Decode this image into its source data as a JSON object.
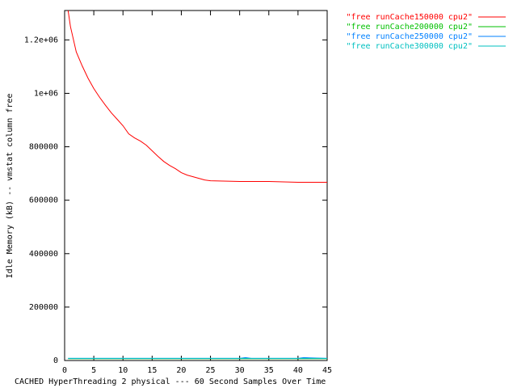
{
  "chart_data": {
    "type": "line",
    "xlabel": "CACHED HyperThreading 2 physical --- 60 Second Samples Over Time",
    "ylabel": "Idle Memory (kB) -- vmstat column free",
    "xlim": [
      0,
      45
    ],
    "xticks": [
      0,
      5,
      10,
      15,
      20,
      25,
      30,
      35,
      40,
      45
    ],
    "ylim": [
      0,
      1310000
    ],
    "yticks": [
      0,
      200000,
      400000,
      600000,
      800000,
      {
        "value": 1000000,
        "label": "1e+06"
      },
      {
        "value": 1200000,
        "label": "1.2e+06"
      }
    ],
    "legend": "outside-top-right",
    "series": [
      {
        "name": "\"free runCache150000 cpu2\"",
        "color": "#ff0000",
        "x": [
          0.6,
          1,
          2,
          3,
          4,
          5,
          6,
          7,
          8,
          9,
          10,
          11,
          12,
          13,
          14,
          15,
          16,
          17,
          18,
          19,
          20,
          21,
          22,
          23,
          24,
          25,
          30,
          35,
          40,
          45
        ],
        "values": [
          1310000,
          1250000,
          1155000,
          1103000,
          1057000,
          1018000,
          985000,
          955000,
          927000,
          903000,
          879000,
          848000,
          833000,
          821000,
          806000,
          785000,
          764000,
          745000,
          730000,
          718000,
          703000,
          694000,
          688000,
          682000,
          676000,
          673000,
          670000,
          670000,
          667000,
          667000
        ]
      },
      {
        "name": "\"free runCache200000 cpu2\"",
        "color": "#00c000",
        "x": [
          0.6,
          45
        ],
        "values": [
          7000,
          7000
        ]
      },
      {
        "name": "\"free runCache250000 cpu2\"",
        "color": "#0080ff",
        "x": [
          0.6,
          30,
          31,
          32,
          40,
          41,
          45
        ],
        "values": [
          8000,
          8000,
          11000,
          8000,
          8000,
          11000,
          8000
        ]
      },
      {
        "name": "\"free runCache300000 cpu2\"",
        "color": "#00c0c0",
        "x": [
          0.6,
          45
        ],
        "values": [
          8000,
          8000
        ]
      }
    ]
  }
}
